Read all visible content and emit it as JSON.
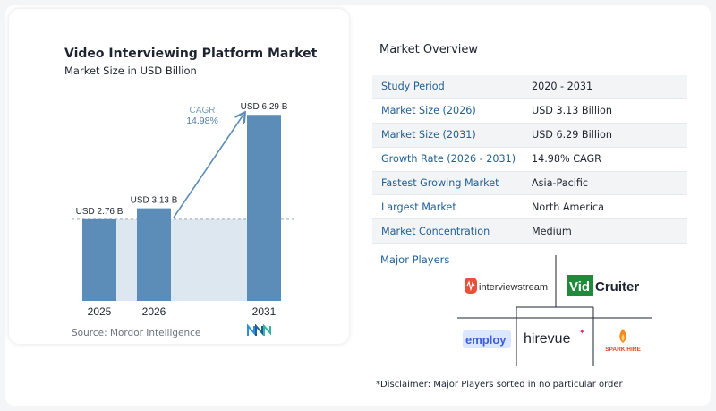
{
  "chart_data": {
    "type": "bar",
    "title": "Video Interviewing Platform Market",
    "subtitle": "Market Size in USD Billion",
    "categories": [
      "2025",
      "2026",
      "2031"
    ],
    "values": [
      2.76,
      3.13,
      6.29
    ],
    "data_labels": [
      "USD 2.76 B",
      "USD 3.13 B",
      "USD 6.29 B"
    ],
    "cagr_label": "CAGR",
    "cagr_value": "14.98%",
    "ylim": [
      0,
      6.6
    ],
    "bar_color": "#5b8db8",
    "bar_color_light": "#9fc0db",
    "band_color": "#dde7f0"
  },
  "source": "Source: Mordor Intelligence",
  "overview": {
    "title": "Market Overview",
    "rows": [
      {
        "label": "Study Period",
        "value": "2020 - 2031"
      },
      {
        "label": "Market Size (2026)",
        "value": "USD 3.13 Billion"
      },
      {
        "label": "Market Size (2031)",
        "value": "USD 6.29 Billion"
      },
      {
        "label": "Growth Rate (2026 - 2031)",
        "value": "14.98% CAGR"
      },
      {
        "label": "Fastest Growing Market",
        "value": "Asia-Pacific"
      },
      {
        "label": "Largest Market",
        "value": "North America"
      },
      {
        "label": "Market Concentration",
        "value": "Medium"
      }
    ],
    "label_color": "#1f5f94"
  },
  "players": {
    "title": "Major Players",
    "logos": [
      {
        "name": "interviewstream",
        "icon": "interviewstream-logo"
      },
      {
        "name": "VidCruiter",
        "part1": "Vid",
        "part2": "Cruiter",
        "icon": "vidcruiter-logo"
      },
      {
        "name": "employ",
        "icon": "employ-logo"
      },
      {
        "name": "hirevue",
        "icon": "hirevue-logo"
      },
      {
        "name": "SPARK HIRE",
        "icon": "sparkhire-logo"
      }
    ]
  },
  "disclaimer": "*Disclaimer: Major Players sorted in no particular order"
}
